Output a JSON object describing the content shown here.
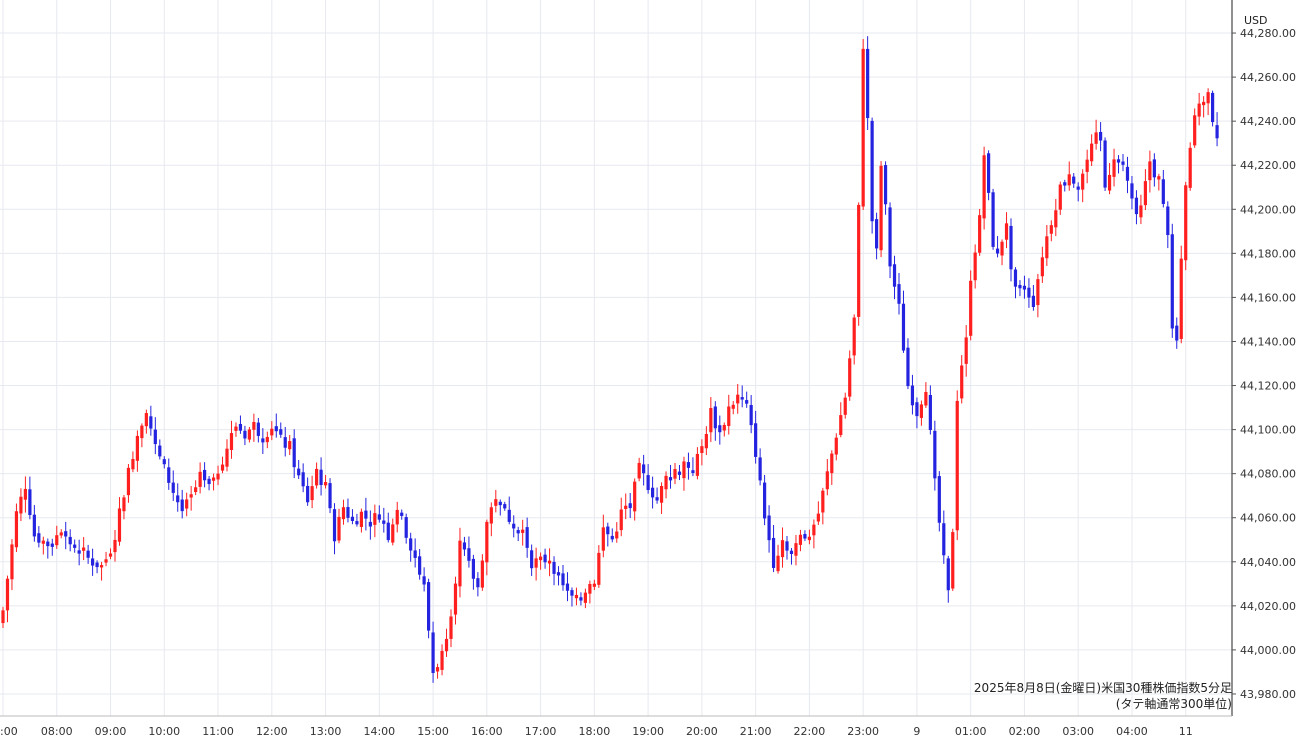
{
  "chart_data": {
    "type": "candlestick",
    "currency": "USD",
    "caption_line1": "2025年8月8日(金曜日)米国30種株価指数5分足",
    "caption_line2": "(タテ軸通常300単位)",
    "ylim": [
      43970,
      44295
    ],
    "y_ticks": [
      "44,280.00",
      "44,260.00",
      "44,240.00",
      "44,220.00",
      "44,200.00",
      "44,180.00",
      "44,160.00",
      "44,140.00",
      "44,120.00",
      "44,100.00",
      "44,080.00",
      "44,060.00",
      "44,040.00",
      "44,020.00",
      "44,000.00",
      "43,980.00"
    ],
    "x_labels": [
      ":00",
      "08:00",
      "09:00",
      "10:00",
      "11:00",
      "12:00",
      "13:00",
      "14:00",
      "15:00",
      "16:00",
      "17:00",
      "18:00",
      "19:00",
      "20:00",
      "21:00",
      "22:00",
      "23:00",
      "9",
      "01:00",
      "02:00",
      "03:00",
      "04:00",
      "11"
    ],
    "x_label_index": [
      0,
      12,
      24,
      36,
      48,
      60,
      72,
      84,
      96,
      108,
      120,
      132,
      144,
      156,
      168,
      180,
      192,
      204,
      216,
      228,
      240,
      252,
      264
    ],
    "close_waypoints": [
      [
        0,
        44018
      ],
      [
        3,
        44062
      ],
      [
        5,
        44075
      ],
      [
        7,
        44052
      ],
      [
        10,
        44048
      ],
      [
        13,
        44055
      ],
      [
        16,
        44046
      ],
      [
        20,
        44040
      ],
      [
        22,
        44038
      ],
      [
        24,
        44042
      ],
      [
        27,
        44072
      ],
      [
        30,
        44098
      ],
      [
        32,
        44110
      ],
      [
        34,
        44092
      ],
      [
        36,
        44082
      ],
      [
        38,
        44072
      ],
      [
        40,
        44063
      ],
      [
        42,
        44068
      ],
      [
        44,
        44078
      ],
      [
        46,
        44073
      ],
      [
        48,
        44082
      ],
      [
        50,
        44092
      ],
      [
        52,
        44102
      ],
      [
        54,
        44098
      ],
      [
        56,
        44102
      ],
      [
        58,
        44097
      ],
      [
        60,
        44102
      ],
      [
        62,
        44095
      ],
      [
        64,
        44092
      ],
      [
        66,
        44078
      ],
      [
        68,
        44068
      ],
      [
        70,
        44082
      ],
      [
        72,
        44072
      ],
      [
        74,
        44052
      ],
      [
        76,
        44065
      ],
      [
        78,
        44058
      ],
      [
        80,
        44062
      ],
      [
        82,
        44058
      ],
      [
        84,
        44062
      ],
      [
        86,
        44052
      ],
      [
        88,
        44065
      ],
      [
        90,
        44053
      ],
      [
        92,
        44042
      ],
      [
        94,
        44028
      ],
      [
        96,
        43990
      ],
      [
        98,
        43998
      ],
      [
        100,
        44018
      ],
      [
        102,
        44048
      ],
      [
        104,
        44038
      ],
      [
        106,
        44028
      ],
      [
        108,
        44058
      ],
      [
        110,
        44070
      ],
      [
        112,
        44062
      ],
      [
        114,
        44058
      ],
      [
        116,
        44055
      ],
      [
        118,
        44040
      ],
      [
        120,
        44040
      ],
      [
        122,
        44042
      ],
      [
        124,
        44033
      ],
      [
        126,
        44025
      ],
      [
        128,
        44022
      ],
      [
        130,
        44028
      ],
      [
        132,
        44032
      ],
      [
        134,
        44055
      ],
      [
        136,
        44050
      ],
      [
        138,
        44062
      ],
      [
        140,
        44065
      ],
      [
        142,
        44082
      ],
      [
        144,
        44075
      ],
      [
        146,
        44068
      ],
      [
        148,
        44078
      ],
      [
        150,
        44082
      ],
      [
        152,
        44085
      ],
      [
        154,
        44082
      ],
      [
        156,
        44092
      ],
      [
        158,
        44108
      ],
      [
        160,
        44098
      ],
      [
        162,
        44110
      ],
      [
        164,
        44115
      ],
      [
        166,
        44110
      ],
      [
        168,
        44090
      ],
      [
        170,
        44060
      ],
      [
        172,
        44040
      ],
      [
        174,
        44050
      ],
      [
        176,
        44045
      ],
      [
        178,
        44052
      ],
      [
        180,
        44052
      ],
      [
        182,
        44062
      ],
      [
        184,
        44080
      ],
      [
        186,
        44098
      ],
      [
        188,
        44115
      ],
      [
        190,
        44150
      ],
      [
        191,
        44200
      ],
      [
        192,
        44275
      ],
      [
        193,
        44240
      ],
      [
        194,
        44195
      ],
      [
        195,
        44180
      ],
      [
        196,
        44220
      ],
      [
        197,
        44200
      ],
      [
        198,
        44175
      ],
      [
        199,
        44165
      ],
      [
        200,
        44155
      ],
      [
        202,
        44120
      ],
      [
        204,
        44108
      ],
      [
        206,
        44120
      ],
      [
        208,
        44075
      ],
      [
        210,
        44040
      ],
      [
        211,
        44025
      ],
      [
        212,
        44055
      ],
      [
        213,
        44115
      ],
      [
        214,
        44130
      ],
      [
        215,
        44140
      ],
      [
        216,
        44170
      ],
      [
        218,
        44195
      ],
      [
        219,
        44225
      ],
      [
        220,
        44205
      ],
      [
        221,
        44185
      ],
      [
        222,
        44178
      ],
      [
        224,
        44195
      ],
      [
        225,
        44170
      ],
      [
        226,
        44162
      ],
      [
        228,
        44165
      ],
      [
        230,
        44158
      ],
      [
        232,
        44180
      ],
      [
        234,
        44195
      ],
      [
        236,
        44210
      ],
      [
        238,
        44218
      ],
      [
        240,
        44210
      ],
      [
        242,
        44222
      ],
      [
        244,
        44232
      ],
      [
        245,
        44230
      ],
      [
        246,
        44210
      ],
      [
        248,
        44225
      ],
      [
        250,
        44220
      ],
      [
        252,
        44205
      ],
      [
        253,
        44195
      ],
      [
        254,
        44200
      ],
      [
        256,
        44222
      ],
      [
        258,
        44212
      ],
      [
        260,
        44190
      ],
      [
        261,
        44145
      ],
      [
        262,
        44140
      ],
      [
        263,
        44175
      ],
      [
        264,
        44210
      ],
      [
        266,
        44242
      ],
      [
        268,
        44250
      ],
      [
        269,
        44255
      ],
      [
        270,
        44240
      ],
      [
        271,
        44235
      ]
    ]
  }
}
